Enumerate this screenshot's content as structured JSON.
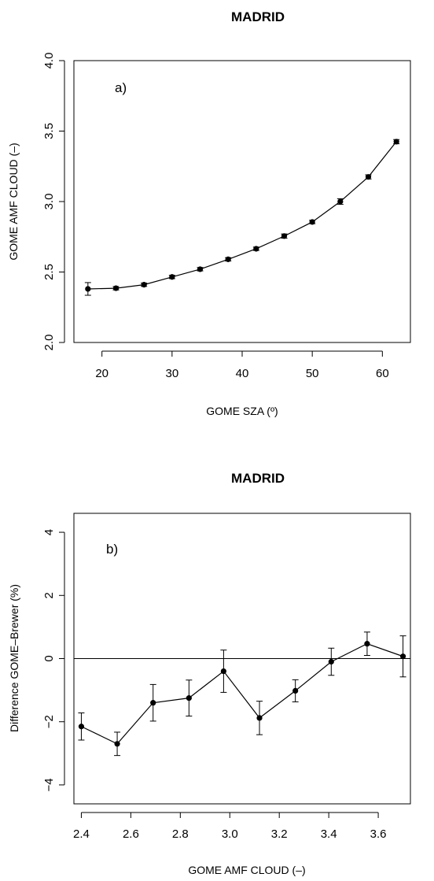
{
  "chart_data": [
    {
      "type": "line",
      "title": "MADRID",
      "panel_label": "a)",
      "xlabel": "GOME SZA (º)",
      "ylabel": "GOME AMF CLOUD (–)",
      "xlim": [
        16,
        64
      ],
      "ylim": [
        2.0,
        4.0
      ],
      "xticks": [
        20,
        30,
        40,
        50,
        60
      ],
      "yticks": [
        2.0,
        2.5,
        3.0,
        3.5,
        4.0
      ],
      "xtick_labels": [
        "20",
        "30",
        "40",
        "50",
        "60"
      ],
      "ytick_labels": [
        "2.0",
        "2.5",
        "3.0",
        "3.5",
        "4.0"
      ],
      "grid": false,
      "series": [
        {
          "x": [
            18,
            22,
            26,
            30,
            34,
            38,
            42,
            46,
            50,
            54,
            58,
            62
          ],
          "y": [
            2.38,
            2.385,
            2.41,
            2.465,
            2.52,
            2.59,
            2.665,
            2.755,
            2.855,
            3.0,
            3.175,
            3.425
          ],
          "err": [
            0.045,
            0.012,
            0.012,
            0.012,
            0.012,
            0.012,
            0.012,
            0.015,
            0.012,
            0.02,
            0.015,
            0.015
          ]
        }
      ]
    },
    {
      "type": "line",
      "title": "MADRID",
      "panel_label": "b)",
      "xlabel": "GOME AMF CLOUD (–)",
      "ylabel": "Difference GOME–Brewer (%)",
      "xlim": [
        2.37,
        3.73
      ],
      "ylim": [
        -4.6,
        4.6
      ],
      "xticks": [
        2.4,
        2.6,
        2.8,
        3.0,
        3.2,
        3.4,
        3.6
      ],
      "yticks": [
        -4,
        -2,
        0,
        2,
        4
      ],
      "xtick_labels": [
        "2.4",
        "2.6",
        "2.8",
        "3.0",
        "3.2",
        "3.4",
        "3.6"
      ],
      "ytick_labels": [
        "−4",
        "−2",
        "0",
        "2",
        "4"
      ],
      "hline": 0,
      "grid": false,
      "series": [
        {
          "x": [
            2.4,
            2.545,
            2.69,
            2.835,
            2.975,
            3.12,
            3.265,
            3.41,
            3.555,
            3.7
          ],
          "y": [
            -2.15,
            -2.7,
            -1.4,
            -1.25,
            -0.4,
            -1.88,
            -1.02,
            -0.1,
            0.47,
            0.07
          ],
          "err": [
            0.43,
            0.37,
            0.58,
            0.57,
            0.67,
            0.53,
            0.35,
            0.43,
            0.37,
            0.65
          ]
        }
      ]
    }
  ]
}
